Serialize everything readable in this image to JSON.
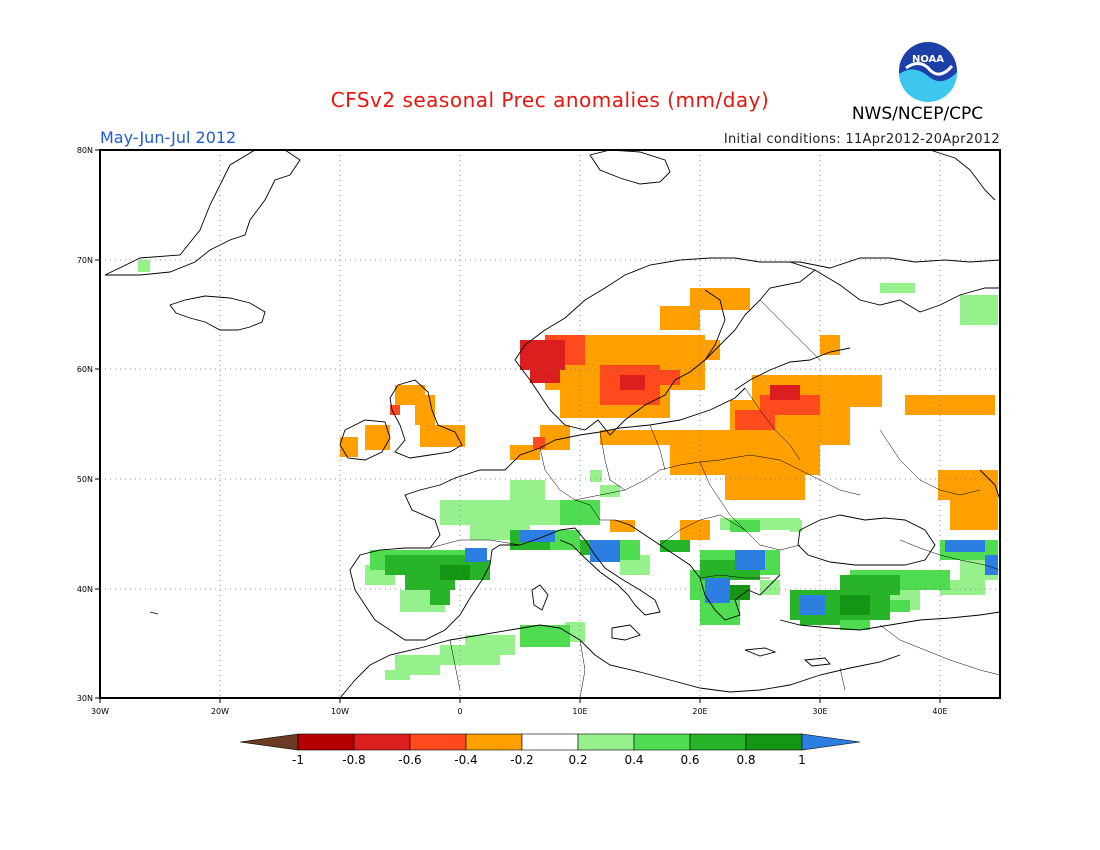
{
  "title": "CFSv2 seasonal Prec anomalies (mm/day)",
  "period": "May-Jun-Jul 2012",
  "initial_conditions": "Initial conditions: 11Apr2012-20Apr2012",
  "agency": "NWS/NCEP/CPC",
  "logo_text": "NOAA",
  "lat_labels": [
    "80N",
    "70N",
    "60N",
    "50N",
    "40N",
    "30N"
  ],
  "lon_labels": [
    "30W",
    "20W",
    "10W",
    "0",
    "10E",
    "20E",
    "30E",
    "40E"
  ],
  "colorbar": {
    "labels": [
      "-1",
      "-0.8",
      "-0.6",
      "-0.4",
      "-0.2",
      "0.2",
      "0.4",
      "0.6",
      "0.8",
      "1"
    ],
    "colors": [
      "#6b3a22",
      "#b40000",
      "#dc1e1e",
      "#ff4a1e",
      "#ffa000",
      "#ffffff",
      "#96f08c",
      "#50dc50",
      "#28b428",
      "#149614",
      "#2c7fe0"
    ]
  },
  "map_data": {
    "region": "Europe",
    "lon_range": [
      -30,
      45
    ],
    "lat_range": [
      30,
      80
    ],
    "anomaly_regions": [
      {
        "name": "Norway west coast",
        "level": "-0.8 to -0.6"
      },
      {
        "name": "Sweden south / Baltic",
        "level": "-0.6 to -0.4"
      },
      {
        "name": "Western Russia / Belarus",
        "level": "-0.4 to -0.2"
      },
      {
        "name": "Moscow region",
        "level": "-0.6 to -0.4"
      },
      {
        "name": "Ireland / Scotland",
        "level": "-0.4 to -0.2"
      },
      {
        "name": "Iberian Peninsula north",
        "level": "0.4 to 0.8"
      },
      {
        "name": "Balkans / Greece",
        "level": "0.6 to 1"
      },
      {
        "name": "Anatolia",
        "level": "0.6 to 1"
      },
      {
        "name": "Black Sea east coast",
        "level": "0.8 to 1"
      },
      {
        "name": "North Africa coast",
        "level": "0.2 to 0.6"
      }
    ]
  }
}
